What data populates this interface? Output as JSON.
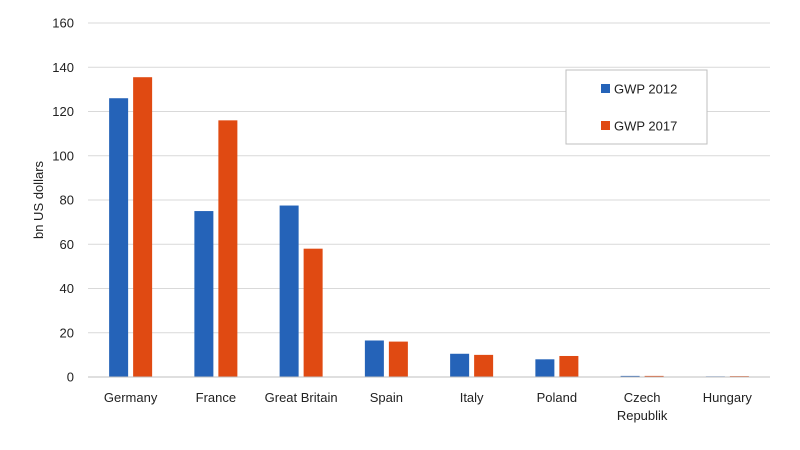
{
  "chart_data": {
    "type": "bar",
    "title": "",
    "xlabel": "",
    "ylabel": "bn US dollars",
    "ylim": [
      0,
      160
    ],
    "yticks": [
      0,
      20,
      40,
      60,
      80,
      100,
      120,
      140,
      160
    ],
    "categories": [
      [
        "Germany"
      ],
      [
        "France"
      ],
      [
        "Great Britain"
      ],
      [
        "Spain"
      ],
      [
        "Italy"
      ],
      [
        "Poland"
      ],
      [
        "Czech",
        "Republik"
      ],
      [
        "Hungary"
      ]
    ],
    "series": [
      {
        "name": "GWP 2012",
        "color": "#2563b8",
        "values": [
          126,
          75,
          77.5,
          16.5,
          10.5,
          8,
          0.5,
          0.3
        ]
      },
      {
        "name": "GWP 2017",
        "color": "#e04a12",
        "values": [
          135.5,
          116,
          58,
          16,
          10,
          9.5,
          0.5,
          0.4
        ]
      }
    ],
    "legend": {
      "position": "top-right"
    },
    "grid": true
  }
}
